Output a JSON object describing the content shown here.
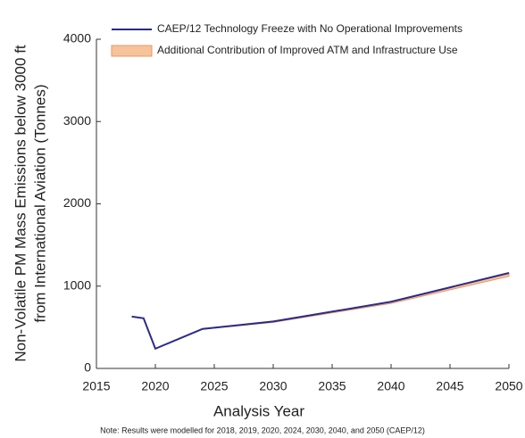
{
  "chart_data": {
    "type": "line",
    "ylabel": [
      "Non-Volatile PM Mass Emissions below 3000 ft",
      "from International Aviation (Tonnes)"
    ],
    "xlabel": "Analysis Year",
    "note": "Note: Results were modelled for 2018, 2019, 2020, 2024, 2030, 2040, and 2050 (CAEP/12)",
    "x": [
      2018,
      2019,
      2020,
      2024,
      2030,
      2040,
      2050
    ],
    "series": [
      {
        "name": "CAEP/12 Technology Freeze with No Operational Improvements",
        "color": "#2b2a8a",
        "values": [
          630,
          610,
          240,
          480,
          570,
          810,
          1160
        ]
      },
      {
        "name": "Additional Contribution of Improved ATM and Infrastructure Use",
        "color": "#f7c39b",
        "edge": "#e39a68",
        "values": [
          0,
          0,
          0,
          5,
          10,
          20,
          40
        ]
      }
    ],
    "xlim": [
      2015,
      2050
    ],
    "xticks": [
      2015,
      2020,
      2025,
      2030,
      2035,
      2040,
      2045,
      2050
    ],
    "ylim": [
      0,
      4000
    ],
    "yticks": [
      0,
      1000,
      2000,
      3000,
      4000
    ],
    "legend": "top"
  }
}
